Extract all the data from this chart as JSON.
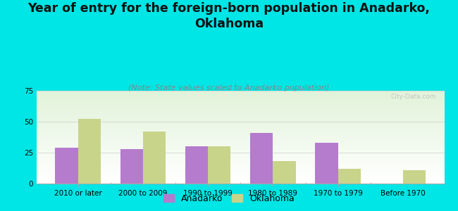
{
  "title": "Year of entry for the foreign-born population in Anadarko,\nOklahoma",
  "subtitle": "(Note: State values scaled to Anadarko population)",
  "categories": [
    "2010 or later",
    "2000 to 2009",
    "1990 to 1999",
    "1980 to 1989",
    "1970 to 1979",
    "Before 1970"
  ],
  "anadarko_values": [
    29,
    28,
    30,
    41,
    33,
    0
  ],
  "oklahoma_values": [
    52,
    42,
    30,
    18,
    12,
    11
  ],
  "anadarko_color": "#b57bcc",
  "oklahoma_color": "#c8d48a",
  "background_color": "#00e5e5",
  "ylim": [
    0,
    75
  ],
  "yticks": [
    0,
    25,
    50,
    75
  ],
  "bar_width": 0.35,
  "title_fontsize": 12.5,
  "subtitle_fontsize": 8,
  "tick_fontsize": 7.5,
  "legend_fontsize": 9
}
